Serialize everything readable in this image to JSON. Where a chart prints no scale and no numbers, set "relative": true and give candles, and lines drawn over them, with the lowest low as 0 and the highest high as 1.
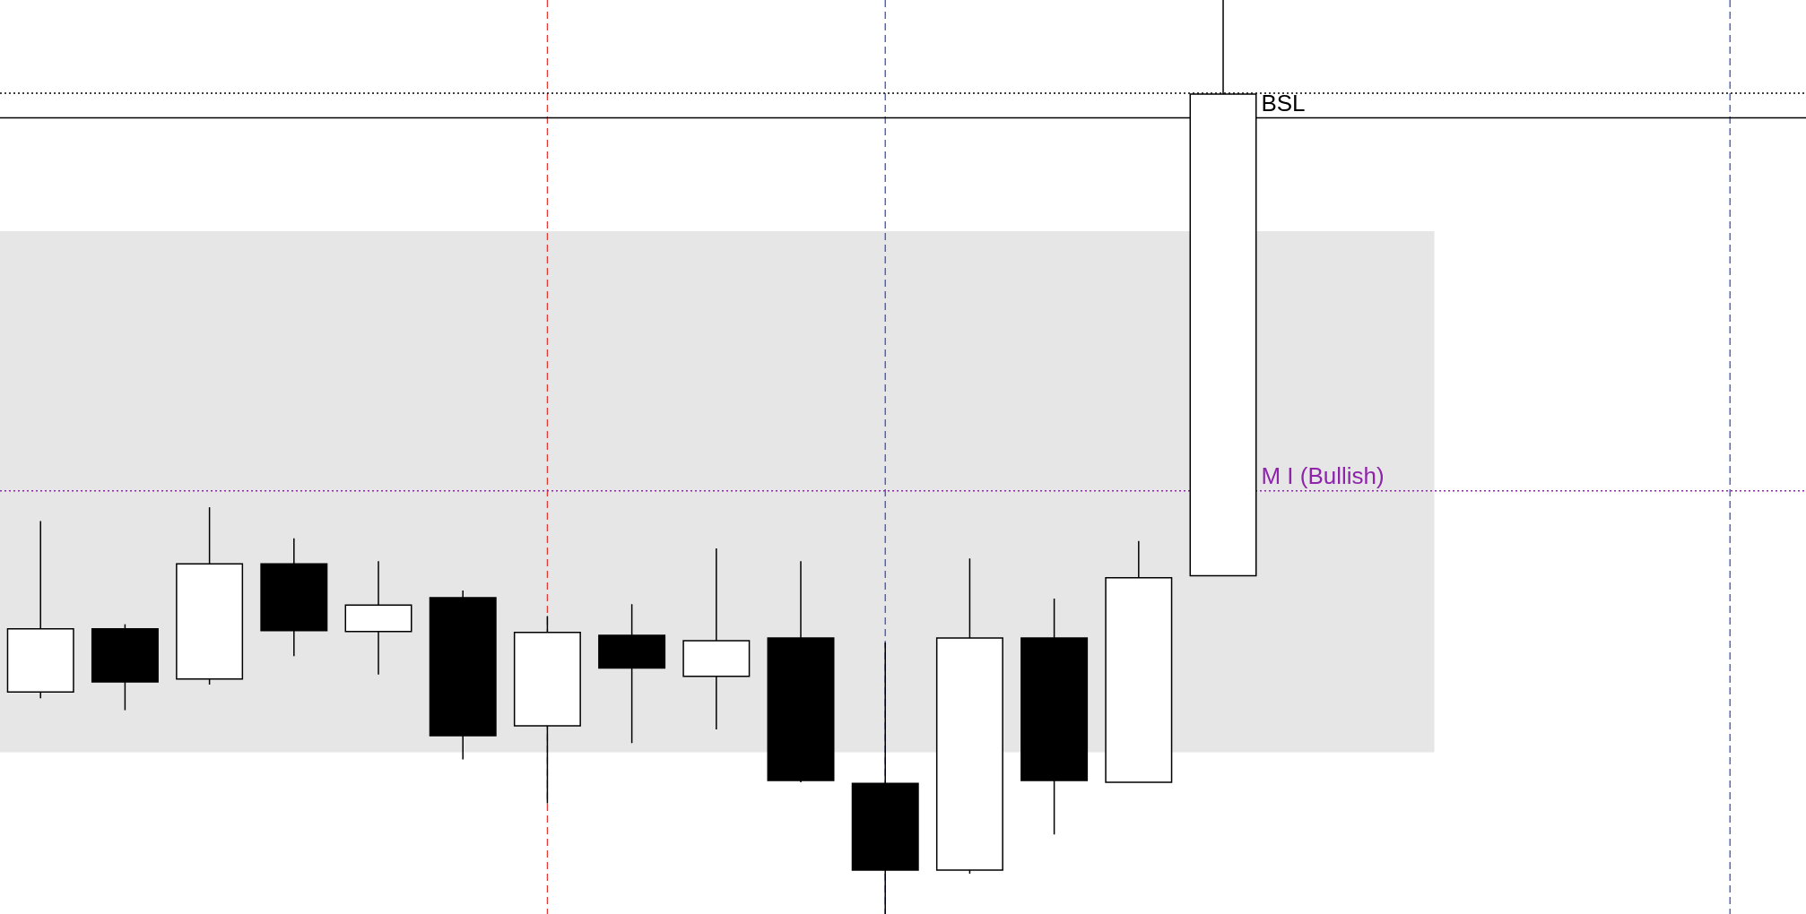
{
  "chart_data": {
    "type": "candlestick",
    "relative": true,
    "categories": [
      null,
      null,
      null,
      null,
      null,
      null,
      null,
      null,
      null,
      null,
      null,
      null,
      null,
      null,
      null
    ],
    "ohlc": [
      [
        0.243,
        0.43,
        0.236,
        0.312
      ],
      [
        0.312,
        0.317,
        0.223,
        0.254
      ],
      [
        0.257,
        0.445,
        0.251,
        0.383
      ],
      [
        0.383,
        0.411,
        0.282,
        0.31
      ],
      [
        0.309,
        0.386,
        0.262,
        0.338
      ],
      [
        0.346,
        0.354,
        0.169,
        0.195
      ],
      [
        0.206,
        0.326,
        0.121,
        0.308
      ],
      [
        0.305,
        0.339,
        0.187,
        0.269
      ],
      [
        0.26,
        0.4,
        0.202,
        0.299
      ],
      [
        0.302,
        0.386,
        0.144,
        0.146
      ],
      [
        0.143,
        0.297,
        0,
        0.048
      ],
      [
        0.048,
        0.389,
        0.044,
        0.302
      ],
      [
        0.302,
        0.345,
        0.087,
        0.146
      ],
      [
        0.144,
        0.408,
        0.144,
        0.368
      ],
      [
        0.37,
        1,
        0.37,
        0.897
      ]
    ],
    "ref_lines": [
      {
        "axis": "y",
        "value": 0.898,
        "label": null,
        "color": "#000000",
        "line_style": "dotted"
      },
      {
        "axis": "y",
        "value": 0.871,
        "label": "BSL",
        "color": "#000000",
        "line_style": "solid"
      },
      {
        "axis": "y",
        "value": 0.463,
        "label": "M I (Bullish)",
        "color": "#8e24aa",
        "line_style": "dotted"
      }
    ],
    "bands": [
      {
        "axis": "y",
        "from": 0.177,
        "to": 0.747,
        "label": null,
        "color": "#e6e6e6"
      }
    ]
  }
}
